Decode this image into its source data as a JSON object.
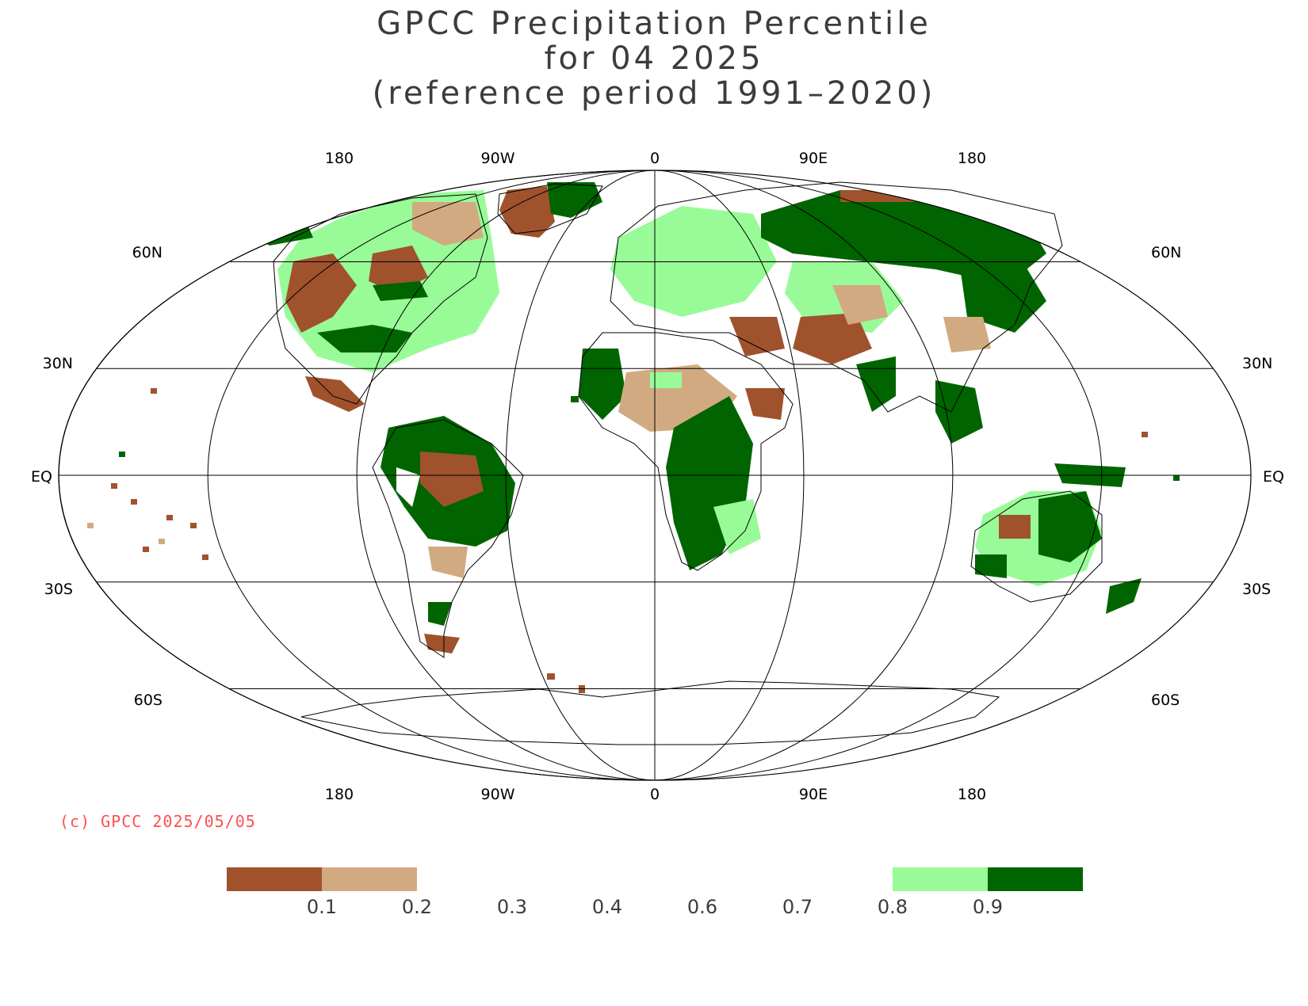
{
  "title": {
    "line1": "GPCC Precipitation Percentile",
    "line2": "for 04 2025",
    "line3": "(reference period 1991–2020)"
  },
  "copyright": "(c) GPCC 2025/05/05",
  "lon_labels": [
    "180",
    "90W",
    "0",
    "90E",
    "180"
  ],
  "lat_labels": {
    "left": [
      "60N",
      "30N",
      "EQ",
      "30S",
      "60S"
    ],
    "right": [
      "60N",
      "30N",
      "EQ",
      "30S",
      "60S"
    ]
  },
  "colors": {
    "very_dry": "#a0522d",
    "dry": "#d2aa82",
    "wet": "#98fb98",
    "very_wet": "#006400",
    "grid": "#000000",
    "title": "#3c3c3c",
    "copyright": "#ff4f4f"
  },
  "legend": {
    "tick_labels": [
      "0.1",
      "0.2",
      "0.3",
      "0.4",
      "0.6",
      "0.7",
      "0.8",
      "0.9"
    ],
    "bins": [
      {
        "from": 0.0,
        "to": 0.1,
        "color": "#a0522d"
      },
      {
        "from": 0.1,
        "to": 0.2,
        "color": "#d2aa82"
      },
      {
        "from": 0.2,
        "to": 0.3,
        "color": "none"
      },
      {
        "from": 0.3,
        "to": 0.4,
        "color": "none"
      },
      {
        "from": 0.4,
        "to": 0.6,
        "color": "none"
      },
      {
        "from": 0.6,
        "to": 0.7,
        "color": "none"
      },
      {
        "from": 0.7,
        "to": 0.8,
        "color": "none"
      },
      {
        "from": 0.8,
        "to": 0.9,
        "color": "#98fb98"
      },
      {
        "from": 0.9,
        "to": 1.0,
        "color": "#006400"
      }
    ]
  },
  "map_regions": [
    {
      "name": "north-america-dry",
      "class": "very_dry"
    },
    {
      "name": "north-america-wet",
      "class": "very_wet"
    },
    {
      "name": "greenland-dry",
      "class": "very_dry"
    },
    {
      "name": "greenland-wet",
      "class": "very_wet"
    },
    {
      "name": "south-america-wet",
      "class": "very_wet"
    },
    {
      "name": "south-america-dry",
      "class": "very_dry"
    },
    {
      "name": "africa-wet",
      "class": "very_wet"
    },
    {
      "name": "africa-dry",
      "class": "dry"
    },
    {
      "name": "siberia-wet",
      "class": "very_wet"
    },
    {
      "name": "asia-dry",
      "class": "very_dry"
    },
    {
      "name": "australia-wet",
      "class": "very_wet"
    },
    {
      "name": "pacific-islands-dry",
      "class": "very_dry"
    }
  ]
}
